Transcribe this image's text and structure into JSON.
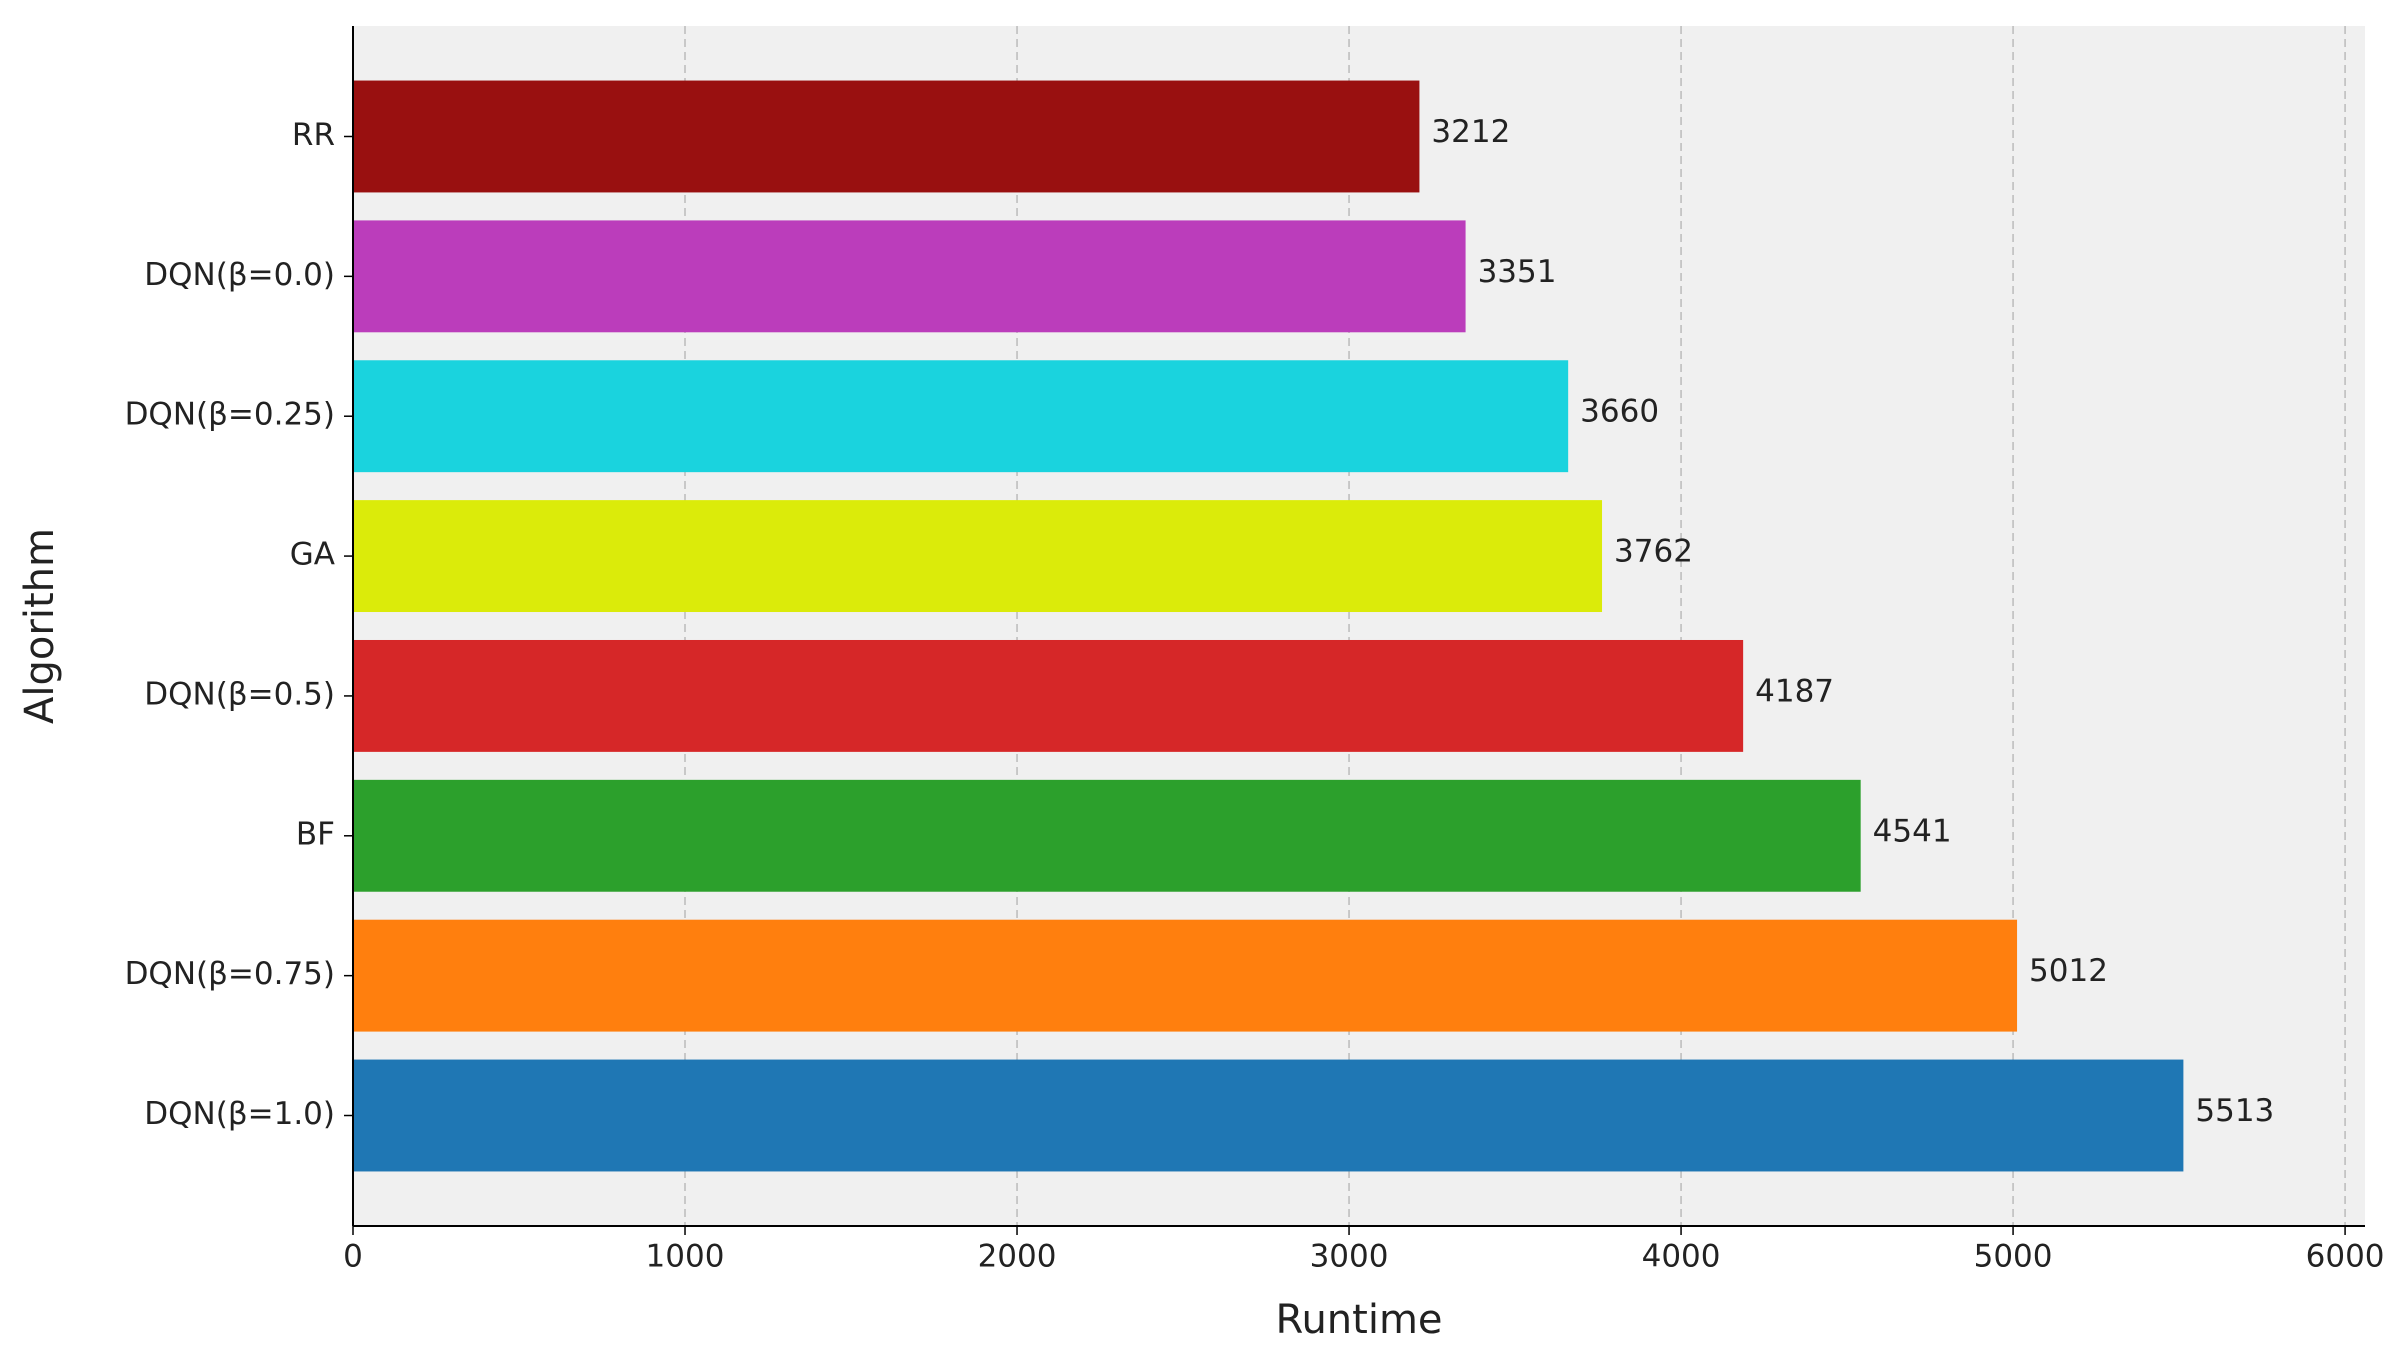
{
  "chart_data": {
    "type": "barh",
    "x_label": "Runtime",
    "y_label": "Algorithm",
    "categories": [
      "DQN(β=1.0)",
      "DQN(β=0.75)",
      "BF",
      "DQN(β=0.5)",
      "GA",
      "DQN(β=0.25)",
      "DQN(β=0.0)",
      "RR"
    ],
    "values": [
      5513,
      5012,
      4541,
      4187,
      3762,
      3660,
      3351,
      3212
    ],
    "colors": [
      "#1f77b4",
      "#ff7f0e",
      "#2ca02c",
      "#d62728",
      "#dbeb0a",
      "#1ad3de",
      "#bb3dbb",
      "#991010"
    ],
    "xlim": [
      0,
      6060
    ],
    "xticks": [
      0,
      1000,
      2000,
      3000,
      4000,
      5000,
      6000
    ],
    "grid": true
  }
}
